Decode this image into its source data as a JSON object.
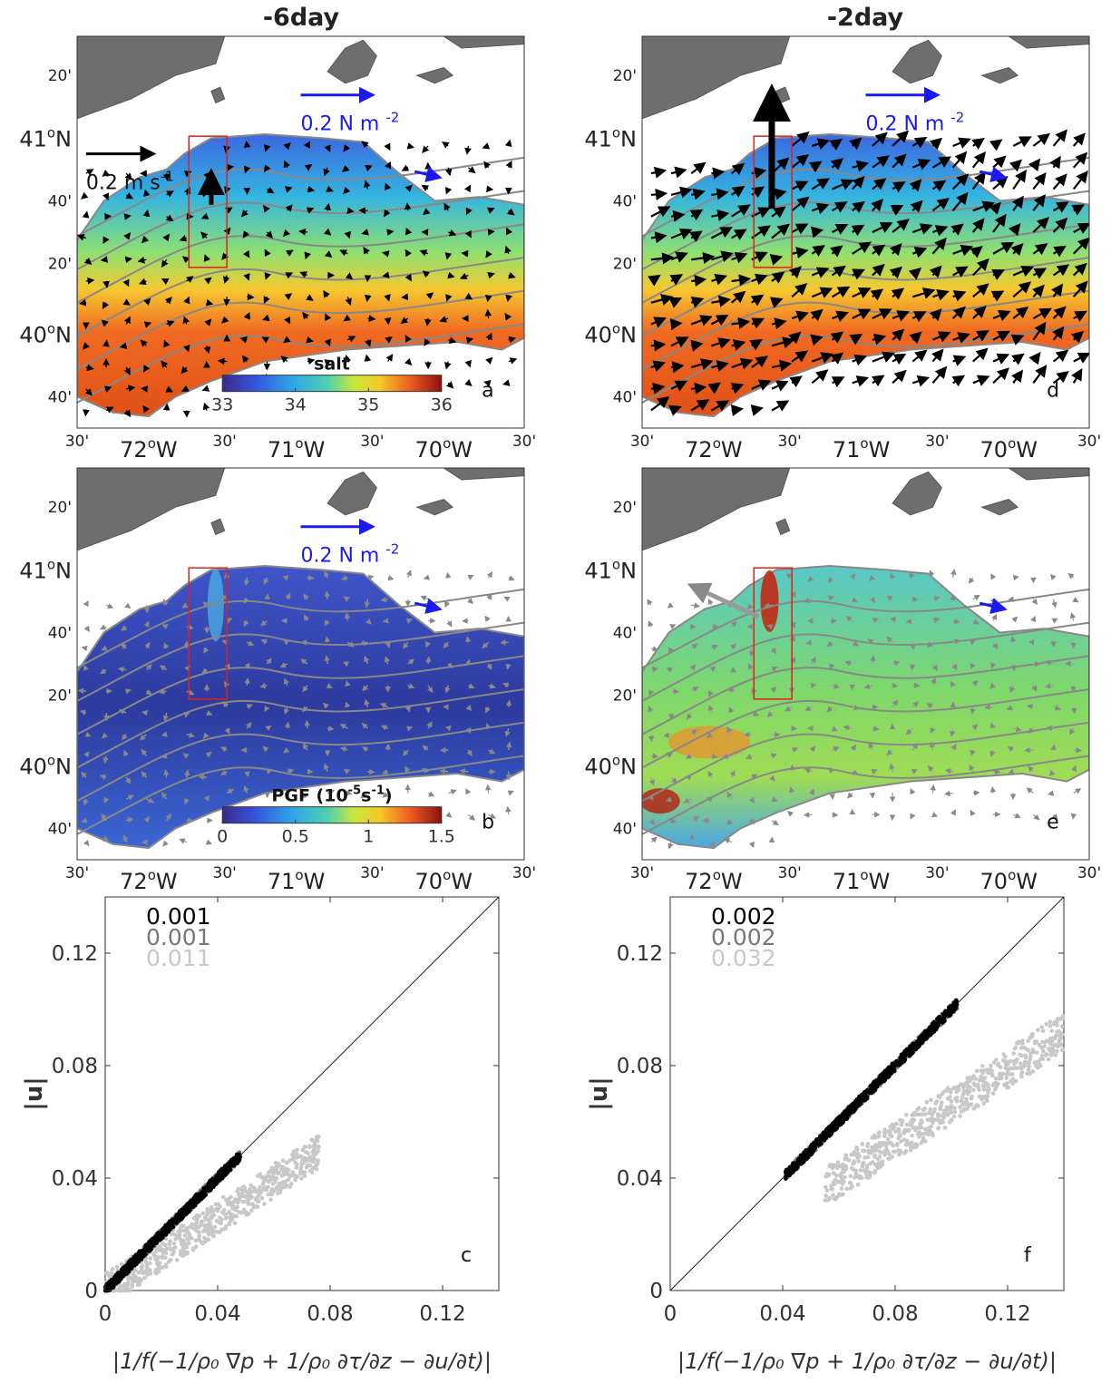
{
  "columns": [
    "-6day",
    "-2day"
  ],
  "colors": {
    "land": "#6e6e6e",
    "contour": "#888888",
    "stress_arrow": "#1a1aee",
    "box": "#e0201b",
    "black_scatter": "#000000",
    "gray_scatter": "#777777",
    "light_scatter": "#c8c8c8"
  },
  "map_axes": {
    "lat_labels": [
      "20'",
      "41°N",
      "40'",
      "20'",
      "40°N",
      "40'"
    ],
    "lon_labels": [
      "30'",
      "72°W",
      "30'",
      "71°W",
      "30'",
      "70°W",
      "30'"
    ]
  },
  "maps": [
    {
      "panel": "a",
      "field": "salt",
      "scale_label": "0.2 m s",
      "stress_label": "0.2 N m",
      "colorbar": {
        "title": "salt",
        "ticks": [
          "33",
          "34",
          "35",
          "36"
        ]
      }
    },
    {
      "panel": "b",
      "field": "PGF",
      "stress_label": "0.2 N m",
      "colorbar": {
        "title": "PGF (10",
        "title_suffix": "s",
        "ticks": [
          "0",
          "0.5",
          "1",
          "1.5"
        ]
      }
    },
    {
      "panel": "d",
      "field": "salt",
      "stress_label": "0.2 N m"
    },
    {
      "panel": "e",
      "field": "PGF"
    }
  ],
  "chart_data": [
    {
      "type": "scatter",
      "panel": "c",
      "xlabel": "|1/f(−1/ρ₀ ∇p + 1/ρ₀ ∂τ/∂z − ∂u/∂t)|",
      "ylabel": "|u|",
      "xlim": [
        0,
        0.14
      ],
      "ylim": [
        0,
        0.14
      ],
      "xticks": [
        "0",
        "0.04",
        "0.08",
        "0.12"
      ],
      "yticks": [
        "0",
        "0.04",
        "0.08",
        "0.12"
      ],
      "annotations": [
        "0.001",
        "0.001",
        "0.011"
      ],
      "series": [
        {
          "color": "#000000",
          "x_range": [
            0,
            0.048
          ],
          "slope": 1.0
        },
        {
          "color": "#777777",
          "x_range": [
            0,
            0.048
          ],
          "slope": 1.0
        },
        {
          "color": "#c8c8c8",
          "x_range": [
            0,
            0.076
          ],
          "slope": 0.65
        }
      ]
    },
    {
      "type": "scatter",
      "panel": "f",
      "xlabel": "|1/f(−1/ρ₀ ∇p + 1/ρ₀ ∂τ/∂z − ∂u/∂t)|",
      "ylabel": "|u|",
      "xlim": [
        0,
        0.14
      ],
      "ylim": [
        0,
        0.14
      ],
      "xticks": [
        "0",
        "0.04",
        "0.08",
        "0.12"
      ],
      "yticks": [
        "0",
        "0.04",
        "0.08",
        "0.12"
      ],
      "annotations": [
        "0.002",
        "0.002",
        "0.032"
      ],
      "series": [
        {
          "color": "#000000",
          "x_range": [
            0.041,
            0.102
          ],
          "slope": 1.0
        },
        {
          "color": "#777777",
          "x_range": [
            0.041,
            0.102
          ],
          "slope": 1.0
        },
        {
          "color": "#c8c8c8",
          "x_range": [
            0.055,
            0.14
          ],
          "slope": 0.65
        }
      ]
    }
  ]
}
